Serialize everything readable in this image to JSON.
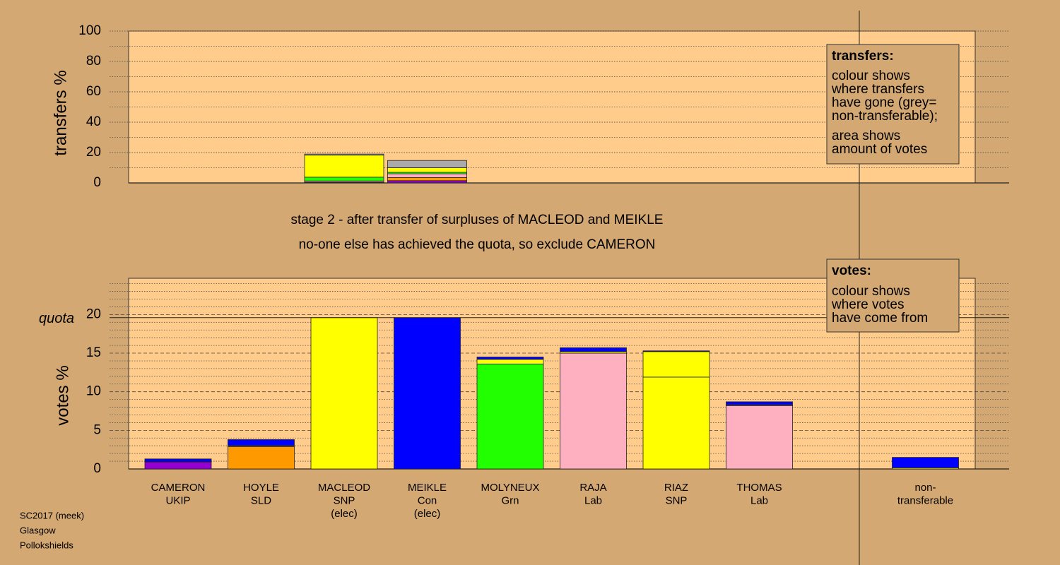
{
  "chart_data": [
    {
      "type": "bar",
      "stacked": true,
      "ylabel": "transfers %",
      "ylim": [
        0,
        100
      ],
      "yticks": [
        0,
        20,
        40,
        60,
        80,
        100
      ],
      "grid_lines": [
        10,
        20,
        30,
        40,
        50,
        60,
        70,
        80,
        90,
        100
      ],
      "series": [
        {
          "color": "#9400d3",
          "values": [
            null,
            null,
            0.2,
            1.5,
            null,
            null,
            null,
            null,
            null,
            null
          ]
        },
        {
          "color": "#ff9900",
          "values": [
            null,
            null,
            0.3,
            2.0,
            null,
            null,
            null,
            null,
            null,
            null
          ]
        },
        {
          "color": "#ffb0c0",
          "values": [
            null,
            null,
            0.8,
            2.5,
            null,
            null,
            null,
            null,
            null,
            null
          ]
        },
        {
          "color": "#22ff00",
          "values": [
            null,
            null,
            2.5,
            1.0,
            null,
            null,
            null,
            null,
            null,
            null
          ]
        },
        {
          "color": "#ffff00",
          "values": [
            null,
            null,
            14.5,
            3.0,
            null,
            null,
            null,
            null,
            null,
            null
          ]
        },
        {
          "color": "#aaaaaa",
          "values": [
            null,
            null,
            0.7,
            4.8,
            null,
            null,
            null,
            null,
            null,
            null
          ]
        }
      ]
    },
    {
      "type": "bar",
      "stacked": true,
      "ylabel": "votes %",
      "categories": [
        [
          "CAMERON",
          "UKIP"
        ],
        [
          "HOYLE",
          "SLD"
        ],
        [
          "MACLEOD",
          "SNP",
          "(elec)"
        ],
        [
          "MEIKLE",
          "Con",
          "(elec)"
        ],
        [
          "MOLYNEUX",
          "Grn"
        ],
        [
          "RAJA",
          "Lab"
        ],
        [
          "RIAZ",
          "SNP"
        ],
        [
          "THOMAS",
          "Lab"
        ],
        null,
        [
          "non-",
          "transferable"
        ]
      ],
      "ylim": [
        0,
        24.7
      ],
      "yticks": [
        0,
        5,
        10,
        15,
        20
      ],
      "grid_lines": [
        1,
        2,
        3,
        4,
        6,
        7,
        8,
        9,
        11,
        12,
        13,
        14,
        16,
        17,
        18,
        19,
        21,
        22,
        23,
        24
      ],
      "quota": {
        "label": "quota",
        "value": 19.6
      },
      "series": [
        {
          "colors": [
            "#9400d3",
            "#ff9900",
            "#ffff00",
            "#0000ff",
            "#22ff00",
            "#ffb0c0",
            "#ffff00",
            "#ffb0c0",
            null,
            null
          ],
          "values": [
            0.9,
            2.9,
            19.6,
            19.6,
            13.6,
            15.0,
            11.9,
            8.2,
            null,
            null
          ]
        },
        {
          "color": "#ffff00",
          "values": [
            0.05,
            0.1,
            null,
            null,
            0.6,
            0.2,
            3.3,
            0.1,
            null,
            0.15
          ]
        },
        {
          "color": "#0000ff",
          "values": [
            0.35,
            0.8,
            null,
            null,
            0.3,
            0.5,
            0.1,
            0.4,
            null,
            1.35
          ]
        }
      ]
    }
  ],
  "stage_text": [
    "stage 2 - after transfer of surpluses of MACLEOD and MEIKLE",
    "no-one else has achieved the quota, so exclude CAMERON"
  ],
  "transfers_note": {
    "title": "transfers:",
    "lines": [
      "colour shows",
      "where transfers",
      "have gone (grey=",
      "non-transferable);",
      "area shows",
      "amount of votes"
    ]
  },
  "votes_note": {
    "title": "votes:",
    "lines": [
      "colour shows",
      "where votes",
      "have come from"
    ]
  },
  "footer": [
    "SC2017 (meek)",
    "Glasgow",
    "Pollokshields"
  ]
}
